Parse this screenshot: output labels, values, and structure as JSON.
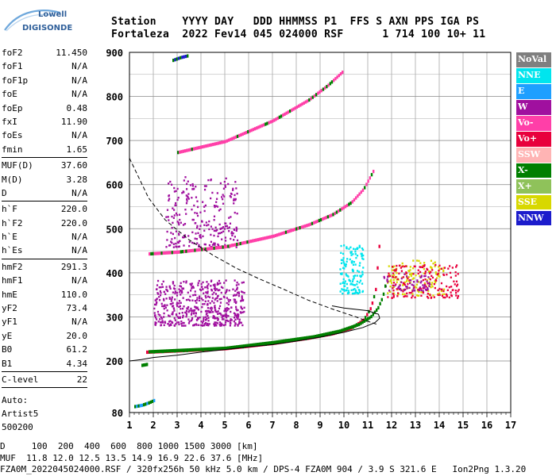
{
  "logo": {
    "line1": "Lowell",
    "line2": "DIGISONDE"
  },
  "header": {
    "labels": "Station    YYYY DAY   DDD HHMMSS P1  FFS S AXN PPS IGA PS",
    "values": "Fortaleza  2022 Fev14 045 024000 RSF      1 714 100 10+ 11"
  },
  "params": {
    "group1": [
      {
        "name": "foF2",
        "value": "11.450"
      },
      {
        "name": "foF1",
        "value": "N/A"
      },
      {
        "name": "foF1p",
        "value": "N/A"
      },
      {
        "name": "foE",
        "value": "N/A"
      },
      {
        "name": "foEp",
        "value": "0.48"
      },
      {
        "name": "fxI",
        "value": "11.90"
      },
      {
        "name": "foEs",
        "value": "N/A"
      },
      {
        "name": "fmin",
        "value": "1.65"
      }
    ],
    "group2": [
      {
        "name": "MUF(D)",
        "value": "37.60"
      },
      {
        "name": "M(D)",
        "value": "3.28"
      },
      {
        "name": "D",
        "value": "N/A"
      }
    ],
    "group3": [
      {
        "name": "h`F",
        "value": "220.0"
      },
      {
        "name": "h`F2",
        "value": "220.0"
      },
      {
        "name": "h`E",
        "value": "N/A"
      },
      {
        "name": "h`Es",
        "value": "N/A"
      }
    ],
    "group4": [
      {
        "name": "hmF2",
        "value": "291.3"
      },
      {
        "name": "hmF1",
        "value": "N/A"
      },
      {
        "name": "hmE",
        "value": "110.0"
      },
      {
        "name": "yF2",
        "value": "73.4"
      },
      {
        "name": "yF1",
        "value": "N/A"
      },
      {
        "name": "yE",
        "value": "20.0"
      },
      {
        "name": "B0",
        "value": "61.2"
      },
      {
        "name": "B1",
        "value": "4.34"
      }
    ],
    "group5": [
      {
        "name": "C-level",
        "value": "22"
      }
    ],
    "auto_lines": [
      "Auto:",
      "Artist5",
      "500200"
    ]
  },
  "legend": [
    {
      "label": "NoVal",
      "color": "#7f7f7f"
    },
    {
      "label": "NNE",
      "color": "#00e5ee"
    },
    {
      "label": "E",
      "color": "#1e9fff"
    },
    {
      "label": "W",
      "color": "#a0109f"
    },
    {
      "label": "Vo-",
      "color": "#ff3fa8"
    },
    {
      "label": "Vo+",
      "color": "#e8003c"
    },
    {
      "label": "SSW",
      "color": "#ffb4b4"
    },
    {
      "label": "X-",
      "color": "#007f00"
    },
    {
      "label": "X+",
      "color": "#8fc25a"
    },
    {
      "label": "SSE",
      "color": "#d8d800"
    },
    {
      "label": "NNW",
      "color": "#1c1ccc"
    }
  ],
  "footer": {
    "line1": "D     100  200  400  600  800 1000 1500 3000 [km]",
    "line2": "MUF  11.8 12.0 12.5 13.5 14.9 16.9 22.6 37.6 [MHz]",
    "line3": "FZA0M_2022045024000.RSF / 320fx256h 50 kHz 5.0 km / DPS-4 FZA0M 904 / 3.9 S 321.6 E   Ion2Png 1.3.20"
  },
  "chart_data": {
    "type": "scatter",
    "xlim": [
      1,
      17
    ],
    "ylim": [
      80,
      900
    ],
    "x_ticks": [
      1,
      2,
      3,
      4,
      5,
      6,
      7,
      8,
      9,
      10,
      11,
      12,
      13,
      14,
      15,
      16,
      17
    ],
    "y_ticks": [
      80,
      200,
      300,
      400,
      500,
      600,
      700,
      800,
      900
    ],
    "grid": true,
    "traces": [
      {
        "name": "O-trace 1st hop",
        "color": "#e8003c",
        "points": [
          [
            1.7,
            220
          ],
          [
            3,
            223
          ],
          [
            5,
            228
          ],
          [
            7,
            240
          ],
          [
            8.5,
            252
          ],
          [
            9.5,
            262
          ],
          [
            10.3,
            275
          ],
          [
            10.8,
            293
          ],
          [
            11.1,
            320
          ],
          [
            11.3,
            360
          ],
          [
            11.45,
            460
          ]
        ]
      },
      {
        "name": "X-trace 1st hop",
        "color": "#007f00",
        "points": [
          [
            1.8,
            221
          ],
          [
            3,
            224
          ],
          [
            5,
            229
          ],
          [
            7,
            242
          ],
          [
            8.7,
            255
          ],
          [
            9.8,
            268
          ],
          [
            10.6,
            283
          ],
          [
            11.1,
            300
          ],
          [
            11.4,
            320
          ],
          [
            11.6,
            345
          ],
          [
            11.7,
            370
          ]
        ]
      },
      {
        "name": "2nd hop",
        "color": "#ff3fa8",
        "points": [
          [
            1.8,
            443
          ],
          [
            3,
            447
          ],
          [
            5,
            459
          ],
          [
            7,
            483
          ],
          [
            8.5,
            509
          ],
          [
            9.5,
            532
          ],
          [
            10.3,
            560
          ],
          [
            10.8,
            590
          ],
          [
            11.2,
            630
          ]
        ]
      },
      {
        "name": "3rd hop",
        "color": "#ff3fa8",
        "points": [
          [
            3,
            673
          ],
          [
            5,
            698
          ],
          [
            7,
            745
          ],
          [
            8.5,
            792
          ],
          [
            9.3,
            825
          ],
          [
            9.9,
            855
          ]
        ]
      },
      {
        "name": "Es 2nd echo",
        "color": "#1c1ccc",
        "points": [
          [
            2.8,
            882
          ],
          [
            3.1,
            888
          ],
          [
            3.4,
            892
          ]
        ]
      },
      {
        "name": "Low echoes",
        "color": "#1e9fff",
        "points": [
          [
            1.2,
            94
          ],
          [
            1.5,
            97
          ],
          [
            1.8,
            103
          ],
          [
            2,
            108
          ]
        ]
      },
      {
        "name": "Low echoes 2",
        "color": "#007f00",
        "points": [
          [
            1.5,
            190
          ],
          [
            1.7,
            192
          ]
        ]
      }
    ],
    "spread": [
      {
        "name": "W spread low",
        "color": "#a0109f",
        "x": [
          2.0,
          5.8
        ],
        "y": [
          282,
          385
        ],
        "count": 520
      },
      {
        "name": "W spread high",
        "color": "#a0109f",
        "x": [
          2.5,
          5.5
        ],
        "y": [
          460,
          620
        ],
        "count": 260
      },
      {
        "name": "NNE spread",
        "color": "#00e5ee",
        "x": [
          9.8,
          10.8
        ],
        "y": [
          355,
          465
        ],
        "count": 140
      },
      {
        "name": "SSE spread",
        "color": "#d8d800",
        "x": [
          11.8,
          14.2
        ],
        "y": [
          350,
          430
        ],
        "count": 140
      },
      {
        "name": "Vo+ spread",
        "color": "#e8003c",
        "x": [
          11.8,
          14.8
        ],
        "y": [
          345,
          420
        ],
        "count": 160
      },
      {
        "name": "W spread right",
        "color": "#a0109f",
        "x": [
          11.6,
          13.6
        ],
        "y": [
          360,
          400
        ],
        "count": 60
      }
    ],
    "profile_solid": [
      [
        1.0,
        200
      ],
      [
        1.5,
        203
      ],
      [
        2,
        208
      ],
      [
        3,
        213
      ],
      [
        4,
        220
      ],
      [
        5,
        226
      ],
      [
        6,
        232
      ],
      [
        7,
        237
      ],
      [
        8,
        245
      ],
      [
        9,
        254
      ],
      [
        10,
        265
      ],
      [
        10.8,
        276
      ],
      [
        11.3,
        287
      ],
      [
        11.5,
        297
      ],
      [
        11.45,
        306
      ],
      [
        11.0,
        314
      ],
      [
        10.0,
        320
      ],
      [
        9.5,
        325
      ]
    ],
    "profile_dashed": [
      [
        1.0,
        660
      ],
      [
        1.8,
        570
      ],
      [
        2.5,
        520
      ],
      [
        3.5,
        475
      ],
      [
        4.5,
        440
      ],
      [
        5.5,
        410
      ],
      [
        6.5,
        385
      ],
      [
        7.5,
        362
      ],
      [
        8.5,
        338
      ],
      [
        9.5,
        318
      ],
      [
        10.5,
        300
      ],
      [
        11.0,
        290
      ],
      [
        11.45,
        282
      ]
    ]
  }
}
